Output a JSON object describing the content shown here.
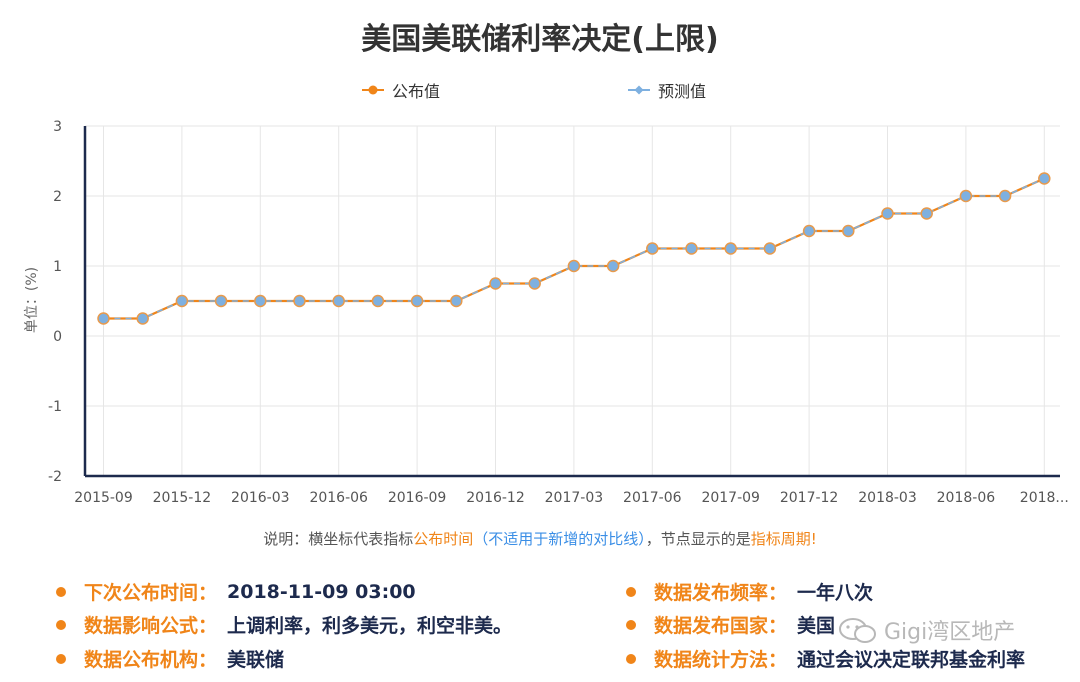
{
  "chart_data": {
    "type": "line",
    "title": "美国美联储利率决定(上限)",
    "ylabel": "单位：(%)",
    "ylim": [
      -2,
      3
    ],
    "yticks": [
      "3",
      "2",
      "1",
      "0",
      "-1",
      "-2"
    ],
    "xticks": [
      "2015-09",
      "2015-12",
      "2016-03",
      "2016-06",
      "2016-09",
      "2016-12",
      "2017-03",
      "2017-06",
      "2017-09",
      "2017-12",
      "2018-03",
      "2018-06",
      "2018..."
    ],
    "legend_position": "top",
    "grid": true,
    "series": [
      {
        "name": "公布值",
        "color": "#f08519",
        "values": [
          0.25,
          0.25,
          0.5,
          0.5,
          0.5,
          0.5,
          0.5,
          0.5,
          0.5,
          0.5,
          0.75,
          0.75,
          1.0,
          1.0,
          1.25,
          1.25,
          1.25,
          1.25,
          1.5,
          1.5,
          1.75,
          1.75,
          2.0,
          2.0,
          2.25
        ]
      },
      {
        "name": "预测值",
        "color": "#7eb0e0",
        "values": [
          0.25,
          0.25,
          0.5,
          0.5,
          0.5,
          0.5,
          0.5,
          0.5,
          0.5,
          0.5,
          0.75,
          0.75,
          1.0,
          1.0,
          1.25,
          1.25,
          1.25,
          1.25,
          1.5,
          1.5,
          1.75,
          1.75,
          2.0,
          2.0,
          2.25
        ]
      }
    ]
  },
  "note": {
    "prefix": "说明：横坐标代表指标",
    "publish_time": "公布时间",
    "paren": "（不适用于新增的对比线）",
    "mid": "，节点显示的是",
    "period": "指标周期",
    "suffix": "!"
  },
  "info": {
    "next_release": {
      "key": "下次公布时间：",
      "value": "2018-11-09 03:00"
    },
    "frequency": {
      "key": "数据发布频率：",
      "value": "一年八次"
    },
    "impact": {
      "key": "数据影响公式：",
      "value": "上调利率，利多美元，利空非美。"
    },
    "country": {
      "key": "数据发布国家：",
      "value": "美国"
    },
    "agency": {
      "key": "数据公布机构：",
      "value": "美联储"
    },
    "method": {
      "key": "数据统计方法：",
      "value": "通过会议决定联邦基金利率"
    }
  },
  "watermark": {
    "text": "Gigi湾区地产"
  },
  "colors": {
    "accent": "#f08519",
    "value_text": "#1d2a4d",
    "note_blue": "#3a8ee6"
  }
}
